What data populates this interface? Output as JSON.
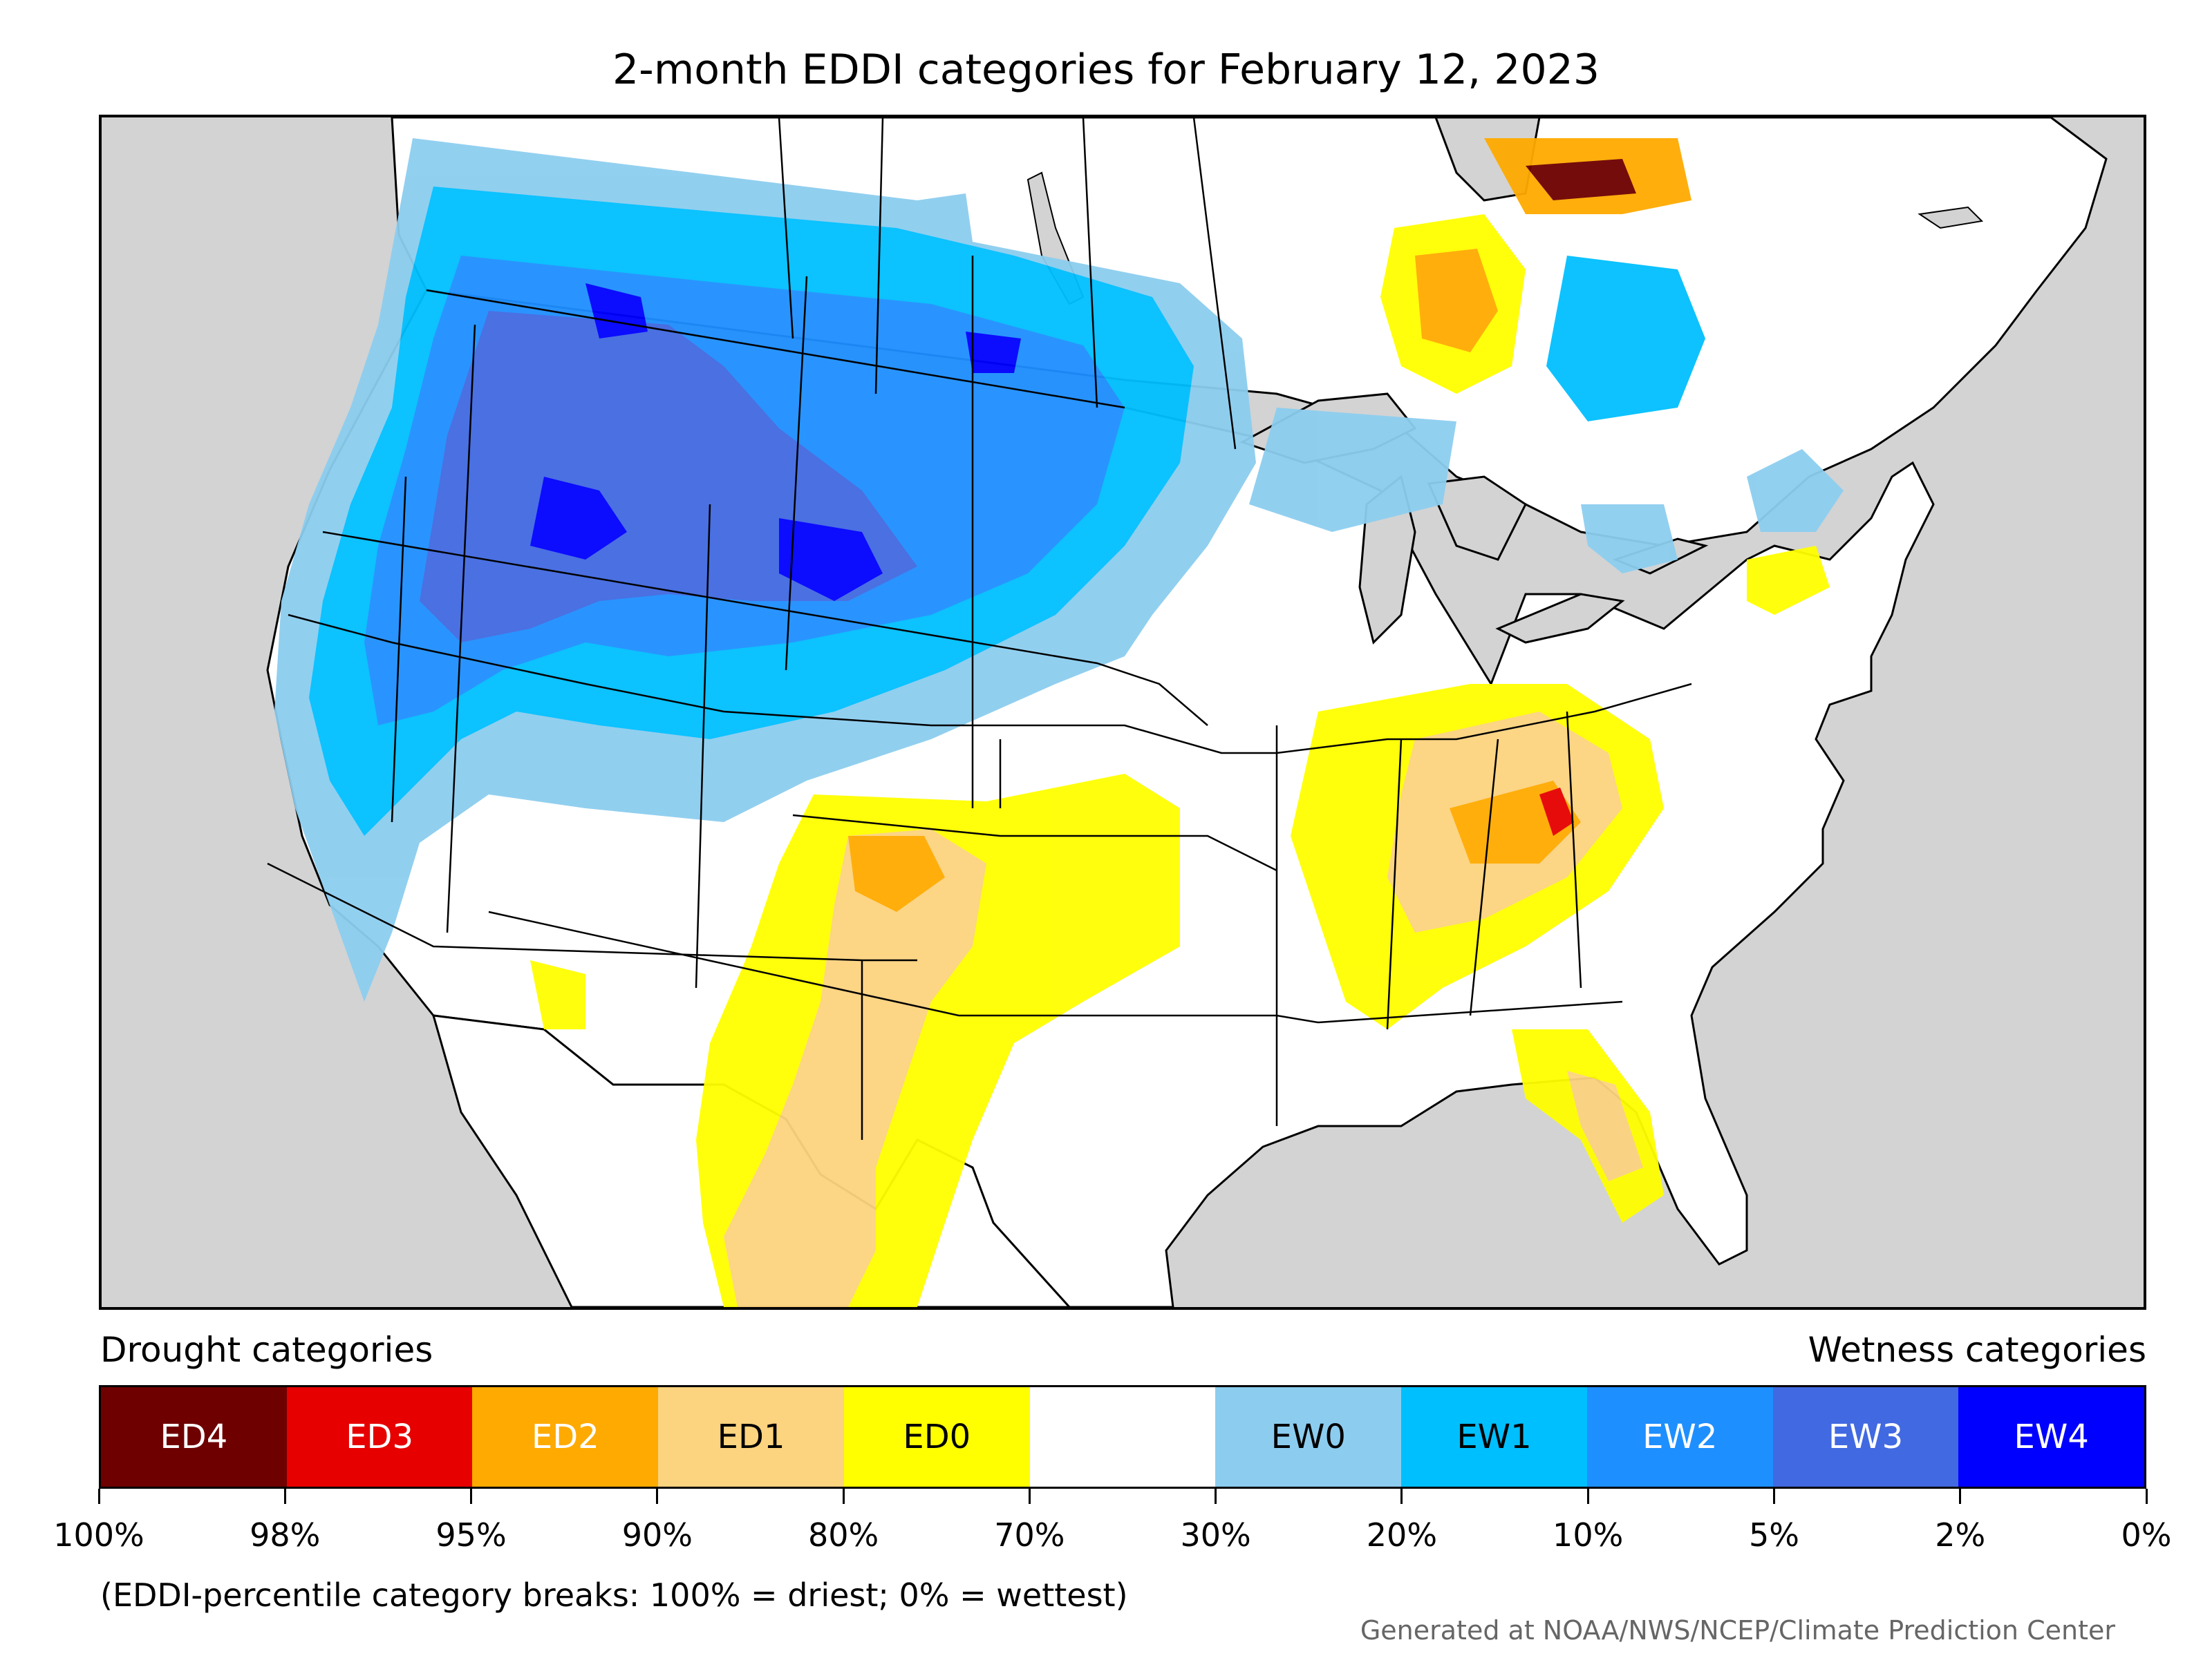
{
  "title": "2-month EDDI categories for February 12, 2023",
  "legend": {
    "left_heading": "Drought categories",
    "right_heading": "Wetness categories",
    "categories": [
      {
        "label": "ED4",
        "color": "#6e0000",
        "text_color": "#ffffff"
      },
      {
        "label": "ED3",
        "color": "#e60000",
        "text_color": "#ffffff"
      },
      {
        "label": "ED2",
        "color": "#ffaa00",
        "text_color": "#ffffff"
      },
      {
        "label": "ED1",
        "color": "#fcd37f",
        "text_color": "#000000"
      },
      {
        "label": "ED0",
        "color": "#ffff00",
        "text_color": "#000000"
      },
      {
        "label": "",
        "color": "#ffffff",
        "text_color": "#000000"
      },
      {
        "label": "EW0",
        "color": "#8ccdef",
        "text_color": "#000000"
      },
      {
        "label": "EW1",
        "color": "#00bfff",
        "text_color": "#000000"
      },
      {
        "label": "EW2",
        "color": "#1e8fff",
        "text_color": "#ffffff"
      },
      {
        "label": "EW3",
        "color": "#4169e1",
        "text_color": "#ffffff"
      },
      {
        "label": "EW4",
        "color": "#0000ff",
        "text_color": "#ffffff"
      }
    ],
    "breaks": [
      "100%",
      "98%",
      "95%",
      "90%",
      "80%",
      "70%",
      "30%",
      "20%",
      "10%",
      "5%",
      "2%",
      "0%"
    ]
  },
  "note": "(EDDI-percentile category breaks: 100% = driest; 0% = wettest)",
  "credit": "Generated at NOAA/NWS/NCEP/Climate Prediction Center",
  "colors": {
    "ocean": "#d3d3d3",
    "land": "#ffffff",
    "border": "#000000"
  }
}
